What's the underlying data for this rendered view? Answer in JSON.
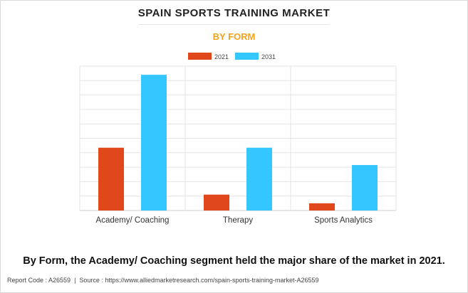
{
  "title": "SPAIN SPORTS TRAINING MARKET",
  "subtitle": "BY FORM",
  "caption": "By Form, the Academy/ Coaching segment held the major share of the market in 2021.",
  "footer": {
    "report_code": "Report Code : A26559",
    "separator": "|",
    "source": "Source : https://www.alliedmarketresearch.com/spain-sports-training-market-A26559"
  },
  "colors": {
    "series_2021": "#e0471a",
    "series_2031": "#33c6ff",
    "grid": "#e4e4e4",
    "subtitle": "#f5a31a"
  },
  "chart_data": {
    "type": "bar",
    "categories": [
      "Academy/ Coaching",
      "Therapy",
      "Sports Analytics"
    ],
    "series": [
      {
        "name": "2021",
        "values": [
          4.35,
          1.1,
          0.5
        ]
      },
      {
        "name": "2031",
        "values": [
          9.4,
          4.35,
          3.15
        ]
      }
    ],
    "ylim": [
      0,
      10
    ],
    "y_gridlines": 10,
    "legend_position": "top-center",
    "grid": true,
    "y_tick_labels_shown": false
  }
}
